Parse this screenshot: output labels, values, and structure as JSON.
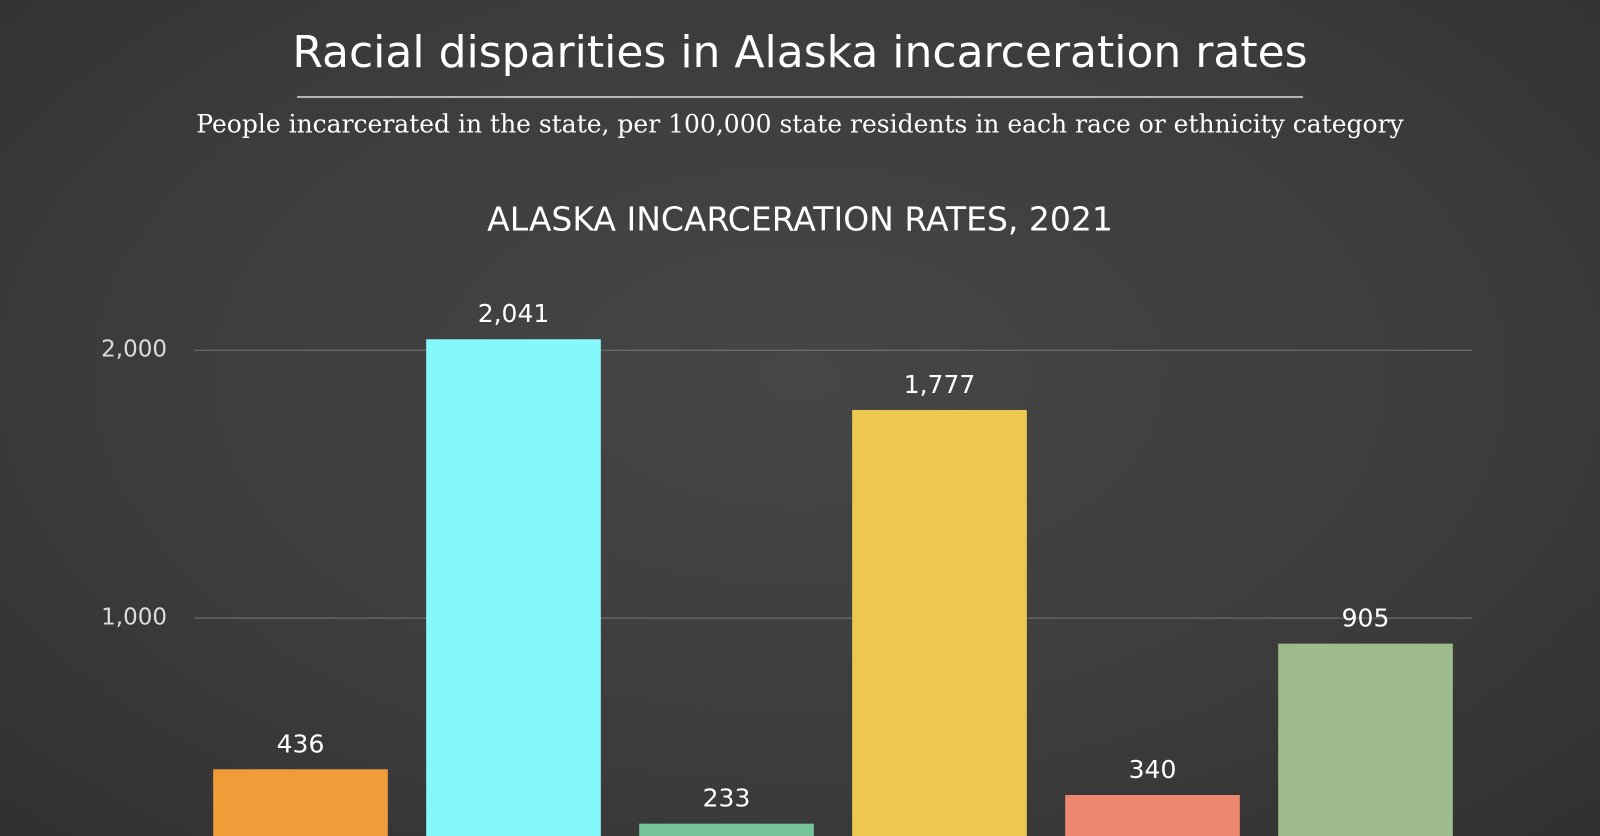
{
  "chart_data": {
    "type": "bar",
    "title": "Racial disparities in Alaska incarceration rates",
    "subtitle": "People incarcerated in the state, per 100,000 state residents in each race or ethnicity category",
    "chart_title": "ALASKA INCARCERATION RATES, 2021",
    "categories": [
      null,
      null,
      null,
      null,
      null,
      null
    ],
    "values": [
      436,
      2041,
      233,
      1777,
      340,
      905
    ],
    "value_labels": [
      "436",
      "2,041",
      "233",
      "1,777",
      "340",
      "905"
    ],
    "colors": [
      "#f09c38",
      "#85f8fd",
      "#77c39a",
      "#ecc851",
      "#ef8870",
      "#9dbb8b"
    ],
    "ylim": [
      187,
      2180
    ],
    "yticks": [
      {
        "value": 1000,
        "label": "1,000"
      },
      {
        "value": 2000,
        "label": "2,000"
      }
    ],
    "grid": true
  }
}
